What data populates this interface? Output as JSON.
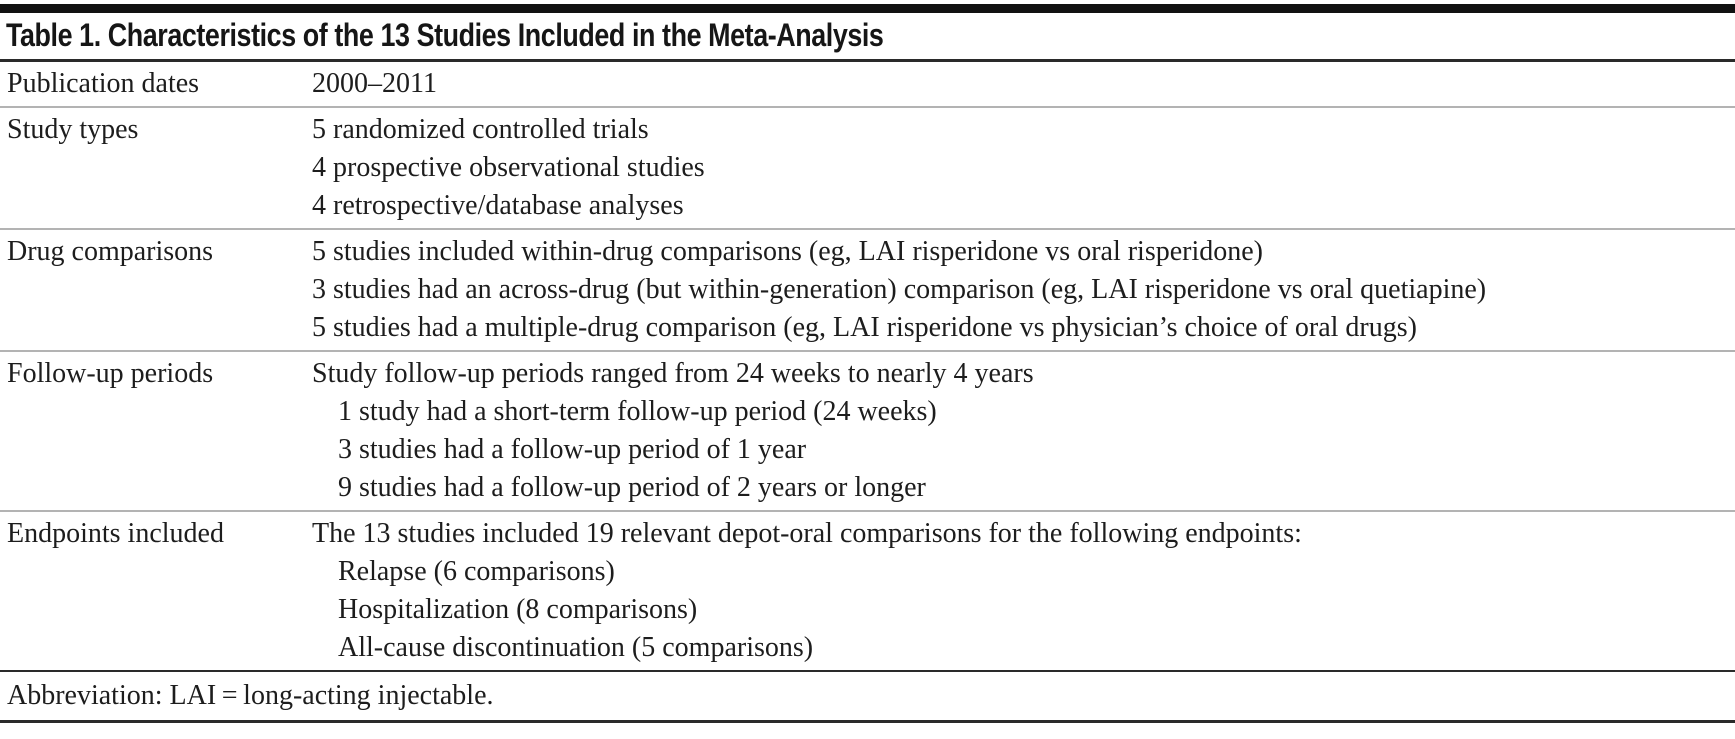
{
  "table": {
    "title": "Table 1. Characteristics of the 13 Studies Included in the Meta-Analysis",
    "rows": [
      {
        "label": "Publication dates",
        "lines": [
          {
            "text": "2000–2011",
            "indent": false
          }
        ]
      },
      {
        "label": "Study types",
        "lines": [
          {
            "text": "5 randomized controlled trials",
            "indent": false
          },
          {
            "text": "4 prospective observational studies",
            "indent": false
          },
          {
            "text": "4 retrospective/database analyses",
            "indent": false
          }
        ]
      },
      {
        "label": "Drug comparisons",
        "lines": [
          {
            "text": "5 studies included within-drug comparisons (eg, LAI risperidone vs oral risperidone)",
            "indent": false
          },
          {
            "text": "3 studies had an across-drug (but within-generation) comparison (eg, LAI risperidone vs oral quetiapine)",
            "indent": false
          },
          {
            "text": "5 studies had a multiple-drug comparison (eg, LAI risperidone vs physician’s choice of oral drugs)",
            "indent": false
          }
        ]
      },
      {
        "label": "Follow-up periods",
        "lines": [
          {
            "text": "Study follow-up periods ranged from 24 weeks to nearly 4 years",
            "indent": false
          },
          {
            "text": "1 study had a short-term follow-up period (24 weeks)",
            "indent": true
          },
          {
            "text": "3 studies had a follow-up period of 1 year",
            "indent": true
          },
          {
            "text": "9 studies had a follow-up period of 2 years or longer",
            "indent": true
          }
        ]
      },
      {
        "label": "Endpoints included",
        "lines": [
          {
            "text": "The 13 studies included 19 relevant depot-oral comparisons for the following endpoints:",
            "indent": false
          },
          {
            "text": "Relapse (6 comparisons)",
            "indent": true
          },
          {
            "text": "Hospitalization (8 comparisons)",
            "indent": true
          },
          {
            "text": "All-cause discontinuation (5 comparisons)",
            "indent": true
          }
        ]
      }
    ],
    "footnote": "Abbreviation: LAI = long-acting injectable."
  },
  "colors": {
    "background": "#ffffff",
    "text": "#1d1d1d",
    "rule_dark": "#2a2a2a",
    "rule_light": "#b3b3b3",
    "top_bar": "#111111"
  }
}
